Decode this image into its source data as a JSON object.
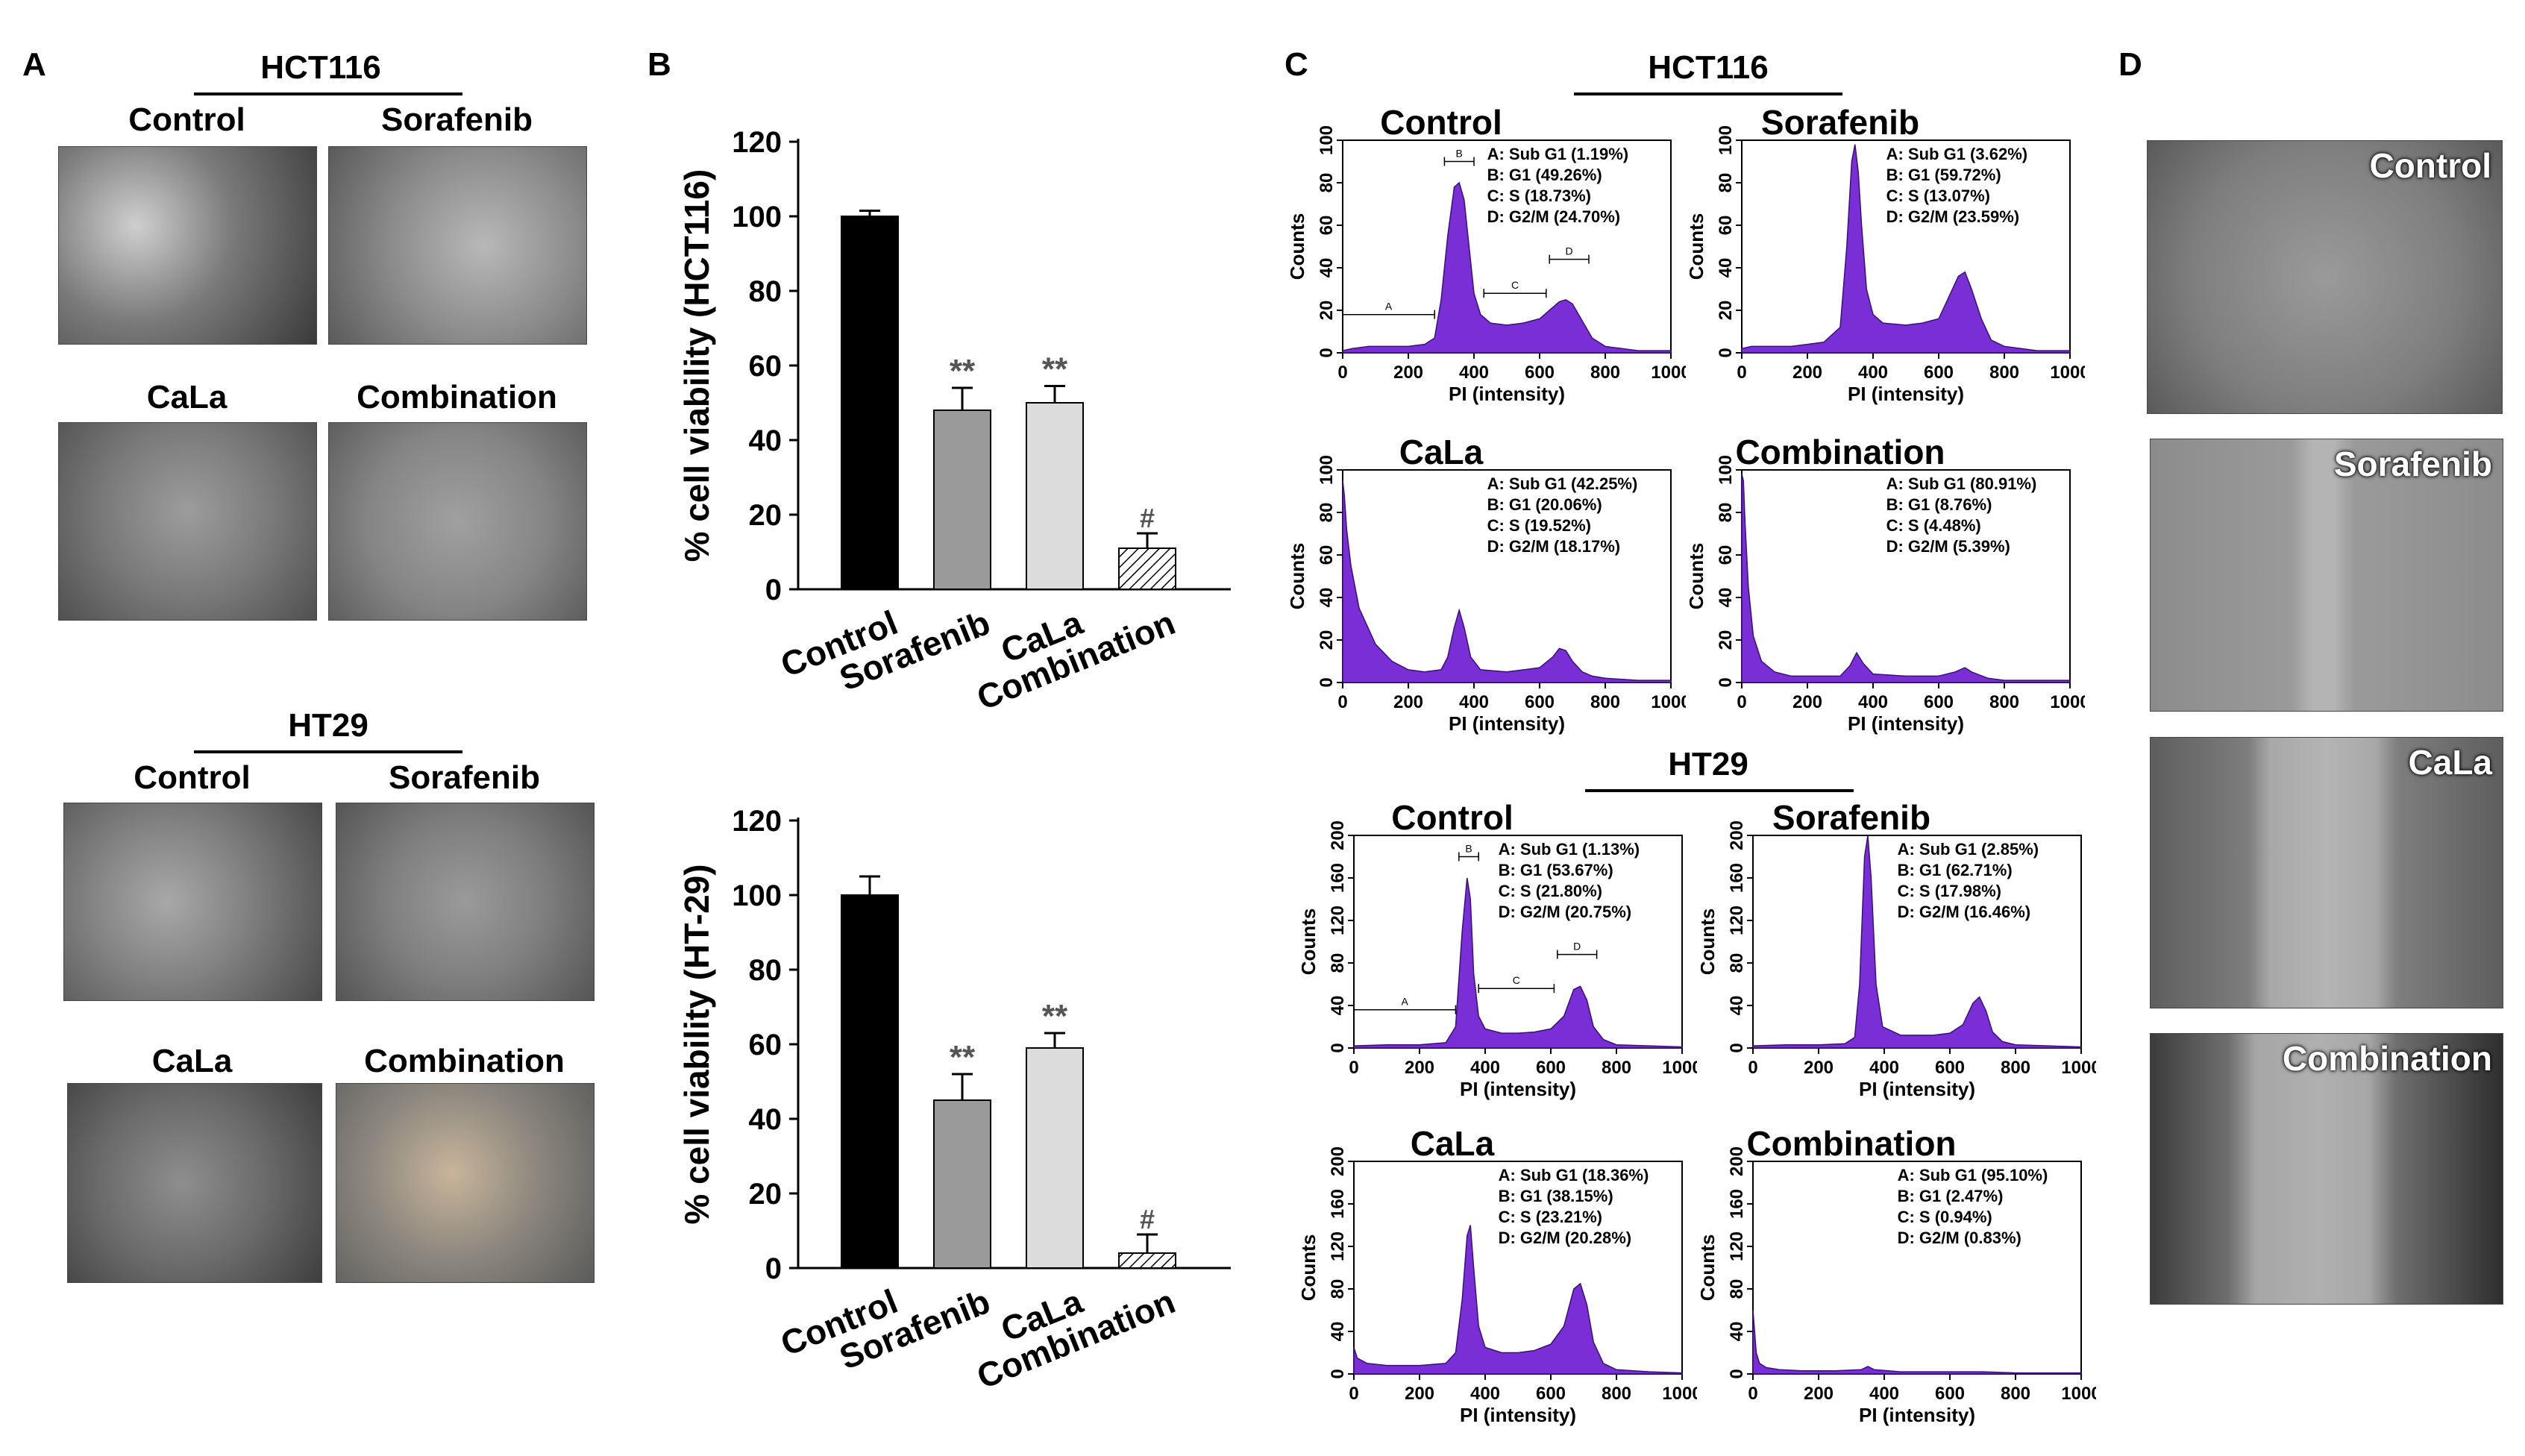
{
  "panels": {
    "A": "A",
    "B": "B",
    "C": "C",
    "D": "D"
  },
  "panel_a": {
    "hct116": {
      "title": "HCT116",
      "conditions": [
        "Control",
        "Sorafenib",
        "CaLa",
        "Combination"
      ]
    },
    "ht29": {
      "title": "HT29",
      "conditions": [
        "Control",
        "Sorafenib",
        "CaLa",
        "Combination"
      ]
    }
  },
  "panel_c": {
    "hct116_title": "HCT116",
    "ht29_title": "HT29"
  },
  "panel_d": {
    "conditions": [
      "Control",
      "Sorafenib",
      "CaLa",
      "Combination"
    ]
  },
  "colors": {
    "histogram": "#7a2fd6",
    "bar_control": "#000000",
    "bar_sorafenib": "#9a9a9a",
    "bar_cala": "#dcdcdc"
  },
  "chart_data": [
    {
      "id": "viability-hct116",
      "type": "bar",
      "title": "",
      "categories": [
        "Control",
        "Sorafenib",
        "CaLa",
        "Combination"
      ],
      "values": [
        100,
        48,
        50,
        11
      ],
      "errors": [
        1.5,
        6,
        4.5,
        4
      ],
      "annotations": [
        "",
        "**",
        "**",
        "#"
      ],
      "ylabel": "% cell viability (HCT116)",
      "xlabel": "",
      "ylim": [
        0,
        120
      ],
      "yticks": [
        "0",
        "20",
        "40",
        "60",
        "80",
        "100",
        "120"
      ]
    },
    {
      "id": "viability-ht29",
      "type": "bar",
      "title": "",
      "categories": [
        "Control",
        "Sorafenib",
        "CaLa",
        "Combination"
      ],
      "values": [
        100,
        45,
        59,
        4
      ],
      "errors": [
        5,
        7,
        4,
        5
      ],
      "annotations": [
        "",
        "**",
        "**",
        "#"
      ],
      "ylabel": "% cell viability (HT-29)",
      "xlabel": "",
      "ylim": [
        0,
        120
      ],
      "yticks": [
        "0",
        "20",
        "40",
        "60",
        "80",
        "100",
        "120"
      ]
    },
    {
      "id": "flow-hct116-control",
      "type": "area",
      "title": "Control",
      "line": "HCT116",
      "xlabel": "PI (intensity)",
      "ylabel": "Counts",
      "xlim": [
        0,
        1000
      ],
      "ylim": [
        0,
        100
      ],
      "xticks": [
        "0",
        "200",
        "400",
        "600",
        "800",
        "1000"
      ],
      "yticks": [
        "0",
        "20",
        "40",
        "60",
        "80",
        "100"
      ],
      "legend": [
        "A: Sub G1 (1.19%)",
        "B: G1 (49.26%)",
        "C: S (18.73%)",
        "D: G2/M (24.70%)"
      ],
      "gates": {
        "A": [
          0,
          280
        ],
        "B": [
          310,
          400
        ],
        "C": [
          430,
          620
        ],
        "D": [
          630,
          750
        ]
      },
      "x": [
        0,
        30,
        80,
        150,
        200,
        250,
        280,
        300,
        320,
        340,
        355,
        370,
        385,
        400,
        420,
        450,
        500,
        550,
        600,
        630,
        660,
        680,
        700,
        730,
        760,
        800,
        850,
        900,
        1000
      ],
      "y": [
        1,
        2,
        3,
        3,
        3,
        4,
        7,
        25,
        55,
        78,
        80,
        72,
        50,
        28,
        18,
        14,
        13,
        14,
        16,
        20,
        24,
        25,
        23,
        15,
        7,
        3,
        2,
        1,
        1
      ]
    },
    {
      "id": "flow-hct116-sorafenib",
      "type": "area",
      "title": "Sorafenib",
      "line": "HCT116",
      "xlabel": "PI (intensity)",
      "ylabel": "Counts",
      "xlim": [
        0,
        1000
      ],
      "ylim": [
        0,
        100
      ],
      "xticks": [
        "0",
        "200",
        "400",
        "600",
        "800",
        "1000"
      ],
      "yticks": [
        "0",
        "20",
        "40",
        "60",
        "80",
        "100"
      ],
      "legend": [
        "A: Sub G1 (3.62%)",
        "B: G1 (59.72%)",
        "C: S (13.07%)",
        "D: G2/M (23.59%)"
      ],
      "x": [
        0,
        30,
        80,
        150,
        200,
        250,
        300,
        320,
        335,
        345,
        355,
        365,
        380,
        400,
        430,
        500,
        550,
        600,
        630,
        660,
        680,
        700,
        730,
        760,
        800,
        850,
        900,
        1000
      ],
      "y": [
        2,
        3,
        3,
        3,
        4,
        5,
        12,
        50,
        90,
        98,
        85,
        60,
        30,
        18,
        14,
        13,
        14,
        16,
        26,
        36,
        38,
        30,
        16,
        6,
        3,
        2,
        1,
        1
      ]
    },
    {
      "id": "flow-hct116-cala",
      "type": "area",
      "title": "CaLa",
      "line": "HCT116",
      "xlabel": "PI (intensity)",
      "ylabel": "Counts",
      "xlim": [
        0,
        1000
      ],
      "ylim": [
        0,
        100
      ],
      "xticks": [
        "0",
        "200",
        "400",
        "600",
        "800",
        "1000"
      ],
      "yticks": [
        "0",
        "20",
        "40",
        "60",
        "80",
        "100"
      ],
      "legend": [
        "A: Sub G1 (42.25%)",
        "B: G1 (20.06%)",
        "C: S (19.52%)",
        "D: G2/M (18.17%)"
      ],
      "x": [
        0,
        5,
        12,
        25,
        50,
        100,
        150,
        200,
        250,
        300,
        320,
        340,
        355,
        370,
        390,
        420,
        500,
        600,
        640,
        660,
        680,
        700,
        730,
        760,
        800,
        900,
        1000
      ],
      "y": [
        95,
        88,
        72,
        55,
        35,
        18,
        10,
        6,
        5,
        6,
        12,
        26,
        34,
        26,
        12,
        6,
        5,
        7,
        12,
        16,
        15,
        10,
        5,
        3,
        2,
        1,
        1
      ]
    },
    {
      "id": "flow-hct116-combination",
      "type": "area",
      "title": "Combination",
      "line": "HCT116",
      "xlabel": "PI (intensity)",
      "ylabel": "Counts",
      "xlim": [
        0,
        1000
      ],
      "ylim": [
        0,
        100
      ],
      "xticks": [
        "0",
        "200",
        "400",
        "600",
        "800",
        "1000"
      ],
      "yticks": [
        "0",
        "20",
        "40",
        "60",
        "80",
        "100"
      ],
      "legend": [
        "A: Sub G1 (80.91%)",
        "B: G1 (8.76%)",
        "C: S (4.48%)",
        "D: G2/M (5.39%)"
      ],
      "x": [
        0,
        5,
        10,
        20,
        35,
        60,
        100,
        150,
        200,
        300,
        330,
        350,
        370,
        400,
        500,
        600,
        650,
        680,
        700,
        750,
        800,
        900,
        1000
      ],
      "y": [
        98,
        95,
        75,
        45,
        22,
        10,
        5,
        3,
        3,
        3,
        8,
        14,
        9,
        4,
        3,
        3,
        5,
        7,
        5,
        2,
        1,
        1,
        1
      ]
    },
    {
      "id": "flow-ht29-control",
      "type": "area",
      "title": "Control",
      "line": "HT29",
      "xlabel": "PI (intensity)",
      "ylabel": "Counts",
      "xlim": [
        0,
        1000
      ],
      "ylim": [
        0,
        200
      ],
      "xticks": [
        "0",
        "200",
        "400",
        "600",
        "800",
        "1000"
      ],
      "yticks": [
        "0",
        "40",
        "80",
        "120",
        "160",
        "200"
      ],
      "legend": [
        "A: Sub G1 (1.13%)",
        "B: G1 (53.67%)",
        "C: S (21.80%)",
        "D: G2/M (20.75%)"
      ],
      "gates": {
        "A": [
          0,
          310
        ],
        "B": [
          320,
          380
        ],
        "C": [
          380,
          610
        ],
        "D": [
          620,
          740
        ]
      },
      "x": [
        0,
        100,
        200,
        280,
        310,
        330,
        345,
        355,
        365,
        380,
        400,
        450,
        500,
        550,
        600,
        640,
        670,
        690,
        710,
        730,
        760,
        800,
        900,
        1000
      ],
      "y": [
        2,
        3,
        3,
        5,
        20,
        110,
        160,
        140,
        70,
        30,
        18,
        14,
        14,
        15,
        18,
        30,
        55,
        58,
        45,
        20,
        8,
        3,
        2,
        1
      ]
    },
    {
      "id": "flow-ht29-sorafenib",
      "type": "area",
      "title": "Sorafenib",
      "line": "HT29",
      "xlabel": "PI (intensity)",
      "ylabel": "Counts",
      "xlim": [
        0,
        1000
      ],
      "ylim": [
        0,
        200
      ],
      "xticks": [
        "0",
        "200",
        "400",
        "600",
        "800",
        "1000"
      ],
      "yticks": [
        "0",
        "40",
        "80",
        "120",
        "160",
        "200"
      ],
      "legend": [
        "A: Sub G1 (2.85%)",
        "B: G1 (62.71%)",
        "C: S (17.98%)",
        "D: G2/M (16.46%)"
      ],
      "x": [
        0,
        100,
        200,
        280,
        310,
        325,
        340,
        350,
        360,
        375,
        395,
        450,
        500,
        550,
        600,
        640,
        670,
        690,
        710,
        730,
        760,
        800,
        900,
        1000
      ],
      "y": [
        2,
        3,
        3,
        4,
        10,
        60,
        180,
        200,
        160,
        60,
        20,
        12,
        12,
        12,
        14,
        22,
        42,
        48,
        35,
        15,
        6,
        3,
        2,
        1
      ]
    },
    {
      "id": "flow-ht29-cala",
      "type": "area",
      "title": "CaLa",
      "line": "HT29",
      "xlabel": "PI (intensity)",
      "ylabel": "Counts",
      "xlim": [
        0,
        1000
      ],
      "ylim": [
        0,
        200
      ],
      "xticks": [
        "0",
        "200",
        "400",
        "600",
        "800",
        "1000"
      ],
      "yticks": [
        "0",
        "40",
        "80",
        "120",
        "160",
        "200"
      ],
      "legend": [
        "A: Sub G1 (18.36%)",
        "B: G1 (38.15%)",
        "C: S (23.21%)",
        "D: G2/M (20.28%)"
      ],
      "x": [
        0,
        10,
        40,
        100,
        200,
        280,
        310,
        330,
        345,
        355,
        365,
        380,
        400,
        450,
        500,
        550,
        600,
        640,
        670,
        690,
        710,
        730,
        760,
        800,
        900,
        1000
      ],
      "y": [
        25,
        15,
        10,
        8,
        8,
        10,
        20,
        70,
        130,
        140,
        100,
        45,
        25,
        20,
        20,
        22,
        28,
        45,
        80,
        85,
        65,
        30,
        10,
        4,
        2,
        1
      ]
    },
    {
      "id": "flow-ht29-combination",
      "type": "area",
      "title": "Combination",
      "line": "HT29",
      "xlabel": "PI (intensity)",
      "ylabel": "Counts",
      "xlim": [
        0,
        1000
      ],
      "ylim": [
        0,
        200
      ],
      "xticks": [
        "0",
        "200",
        "400",
        "600",
        "800",
        "1000"
      ],
      "yticks": [
        "0",
        "40",
        "80",
        "120",
        "160",
        "200"
      ],
      "legend": [
        "A: Sub G1 (95.10%)",
        "B: G1 (2.47%)",
        "C: S (0.94%)",
        "D: G2/M (0.83%)"
      ],
      "x": [
        0,
        5,
        10,
        20,
        40,
        80,
        150,
        250,
        330,
        350,
        370,
        450,
        600,
        700,
        800,
        1000
      ],
      "y": [
        60,
        40,
        20,
        10,
        6,
        4,
        3,
        3,
        4,
        7,
        4,
        2,
        2,
        2,
        1,
        1
      ]
    }
  ]
}
